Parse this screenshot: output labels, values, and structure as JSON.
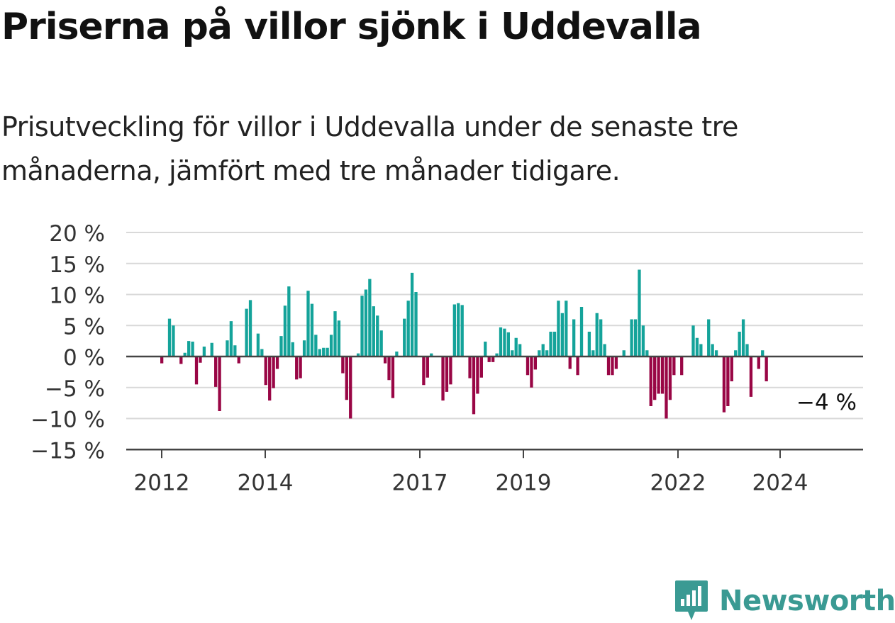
{
  "title": "Priserna på villor sjönk i Uddevalla",
  "subtitle": "Prisutveckling för villor i Uddevalla under de senaste tre månaderna, jämfört med tre månader tidigare.",
  "brand": {
    "name": "Newsworthy",
    "icon": "newsworthy-logo-icon",
    "color": "#3a9a93"
  },
  "chart_data": {
    "type": "bar",
    "x_labels": [
      "2012",
      "2014",
      "2017",
      "2019",
      "2022",
      "2024"
    ],
    "y_tick_labels": [
      "20 %",
      "15 %",
      "10 %",
      "5 %",
      "0 %",
      "−5 %",
      "−10 %",
      "−15 %"
    ],
    "y_ticks": [
      20,
      15,
      10,
      5,
      0,
      -5,
      -10,
      -15
    ],
    "ylim": [
      -15,
      20
    ],
    "unit": "%",
    "grid": true,
    "colors": {
      "positive": "#14a39a",
      "negative": "#990645"
    },
    "last_value_label": "−4 %",
    "values": [
      -1.1,
      0,
      6.1,
      5,
      0,
      -1.2,
      0.6,
      2.5,
      2.4,
      -4.5,
      -1,
      1.6,
      0,
      2.2,
      -4.9,
      -8.8,
      0,
      2.6,
      5.7,
      1.8,
      -1.1,
      0,
      7.7,
      9.1,
      0,
      3.7,
      1.2,
      -4.6,
      -7.1,
      -5.1,
      -2,
      3.3,
      8.2,
      11.3,
      2.3,
      -3.7,
      -3.5,
      2.6,
      10.6,
      8.5,
      3.5,
      1.2,
      1.4,
      1.4,
      3.5,
      7.3,
      5.8,
      -2.7,
      -7,
      -10,
      0,
      0.5,
      9.8,
      10.8,
      12.5,
      8.1,
      6.6,
      4.2,
      -1.1,
      -3.8,
      -6.7,
      0.8,
      0,
      6.1,
      9,
      13.5,
      10.4,
      0,
      -4.6,
      -3.4,
      0.5,
      0,
      0,
      -7.1,
      -5.7,
      -4.5,
      8.4,
      8.6,
      8.3,
      0,
      -3.5,
      -9.3,
      -6,
      -3.4,
      2.4,
      -0.9,
      -0.9,
      0.5,
      4.7,
      4.5,
      3.9,
      1,
      3,
      2,
      0,
      -3,
      -5,
      -2.1,
      1,
      2,
      1,
      4,
      4,
      9,
      7,
      9,
      -2,
      6,
      -3,
      8,
      0,
      4,
      1,
      7,
      6,
      2,
      -3,
      -3,
      -2,
      0,
      1,
      0,
      6,
      6,
      14,
      5,
      1,
      -8,
      -7,
      -6,
      -6,
      -10,
      -7,
      -3,
      0,
      -3,
      0,
      0,
      5,
      3,
      2,
      0,
      6,
      2,
      1,
      0,
      -9,
      -8,
      -4,
      1,
      4,
      6,
      2,
      -6.5,
      0,
      -2,
      1,
      -4
    ]
  }
}
